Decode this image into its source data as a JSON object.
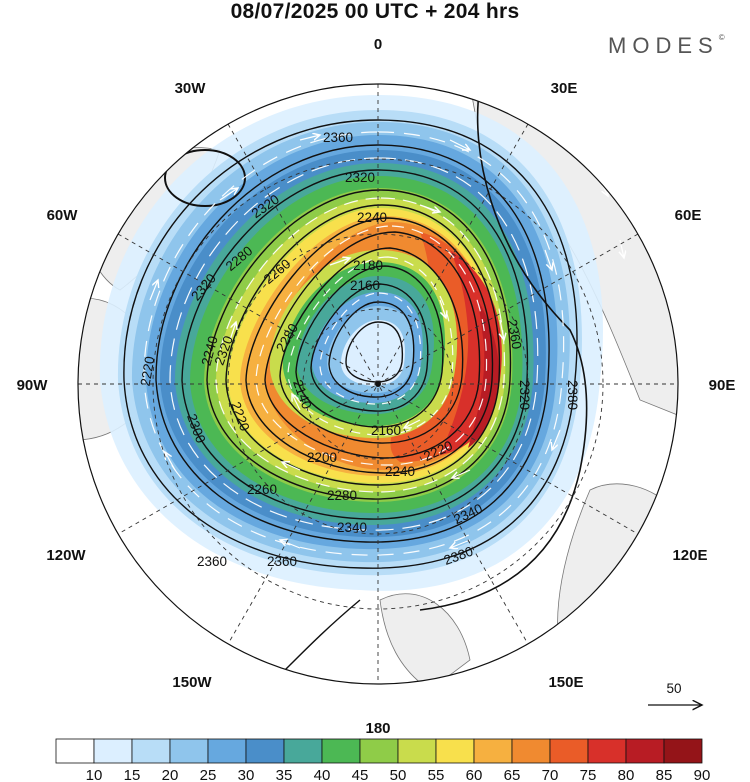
{
  "title": "08/07/2025  00 UTC  + 204 hrs",
  "logo": "MODES",
  "logo_mark": "©",
  "longitude_labels": {
    "top": "0",
    "top_right": "30E",
    "right_upper": "60E",
    "right": "90E",
    "right_lower": "120E",
    "bottom_right": "150E",
    "bottom": "180",
    "bottom_left": "150W",
    "left_lower": "120W",
    "left": "90W",
    "left_upper": "60W",
    "top_left": "30W"
  },
  "contour_labels": [
    "2360",
    "2320",
    "2320",
    "2240",
    "2280",
    "2320",
    "2180",
    "2160",
    "2260",
    "2320",
    "2360",
    "2240",
    "2280",
    "2140",
    "2160",
    "2220",
    "2320",
    "2380",
    "2300",
    "2220",
    "2200",
    "2240",
    "2220",
    "2260",
    "2280",
    "2340",
    "2340",
    "2360",
    "2360",
    "2380"
  ],
  "reference_vector": {
    "label": "50"
  },
  "colorbar": {
    "labels": [
      "10",
      "15",
      "20",
      "25",
      "30",
      "35",
      "40",
      "45",
      "50",
      "55",
      "60",
      "65",
      "70",
      "75",
      "80",
      "85",
      "90"
    ],
    "colors": [
      "#ffffff",
      "#dcefff",
      "#b8ddf7",
      "#8fc5ec",
      "#66a8df",
      "#4a8ec9",
      "#48a89a",
      "#4cb854",
      "#8fcc48",
      "#c9dc4c",
      "#f8e04c",
      "#f6b040",
      "#f08a30",
      "#ea5c28",
      "#d8302a",
      "#b81c24",
      "#941418"
    ]
  },
  "units_note": ""
}
